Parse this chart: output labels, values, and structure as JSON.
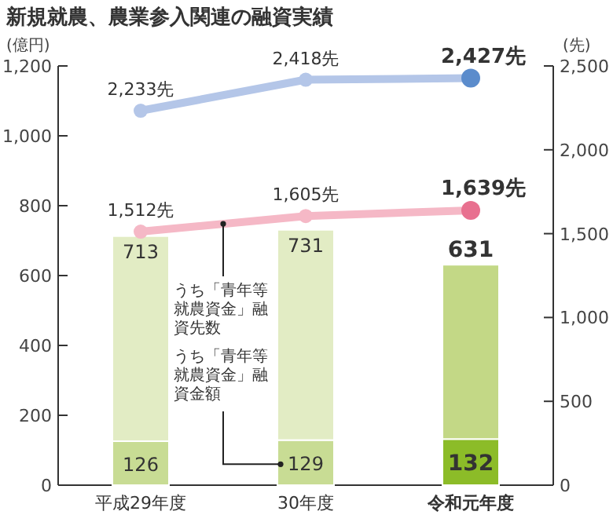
{
  "chart_data": {
    "type": "bar",
    "stacked": true,
    "title": "新規就農、農業参入関連の融資実績",
    "ylabel": "(億円)",
    "y2label": "(先)",
    "categories": [
      "平成29年度",
      "30年度",
      "令和元年度"
    ],
    "series": [
      {
        "values": [
          126,
          129,
          132
        ],
        "colors": [
          "#c8dc94",
          "#c8dc94",
          "#8cbc28"
        ],
        "value_labels": [
          "126",
          "129",
          "132"
        ]
      },
      {
        "values": [
          587,
          602,
          499
        ],
        "colors": [
          "#e2ecc4",
          "#e2ecc4",
          "#c3d886"
        ]
      },
      {
        "type": "line",
        "axis": "y2",
        "color": "#b4c6e8",
        "colors": [
          "#b4c6e8",
          "#b4c6e8",
          "#5b8ccc"
        ],
        "values": [
          2233,
          2418,
          2427
        ],
        "value_labels": [
          "2,233先",
          "2,418先",
          "2,427先"
        ]
      },
      {
        "type": "line",
        "axis": "y2",
        "color": "#f5b8c6",
        "colors": [
          "#f5b8c6",
          "#f5b8c6",
          "#e8708f"
        ],
        "values": [
          1512,
          1605,
          1639
        ],
        "value_labels": [
          "1,512先",
          "1,605先",
          "1,639先"
        ]
      }
    ],
    "totals": [
      "713",
      "731",
      "631"
    ],
    "ylim": [
      0,
      1200
    ],
    "yticks": [
      0,
      200,
      400,
      600,
      800,
      {
        "value": 1000,
        "label": "1,000"
      },
      {
        "value": 1200,
        "label": "1,200"
      }
    ],
    "y2lim": [
      0,
      2500
    ],
    "y2ticks": [
      0,
      500,
      {
        "value": 1000,
        "label": "1,000"
      },
      {
        "value": 1500,
        "label": "1,500"
      },
      {
        "value": 2000,
        "label": "2,000"
      },
      {
        "value": 2500,
        "label": "2,500"
      }
    ],
    "annotations": [
      "うち「青年等就農資金」融資先数",
      "うち「青年等就農資金」融資金額"
    ],
    "marker": "circle"
  }
}
